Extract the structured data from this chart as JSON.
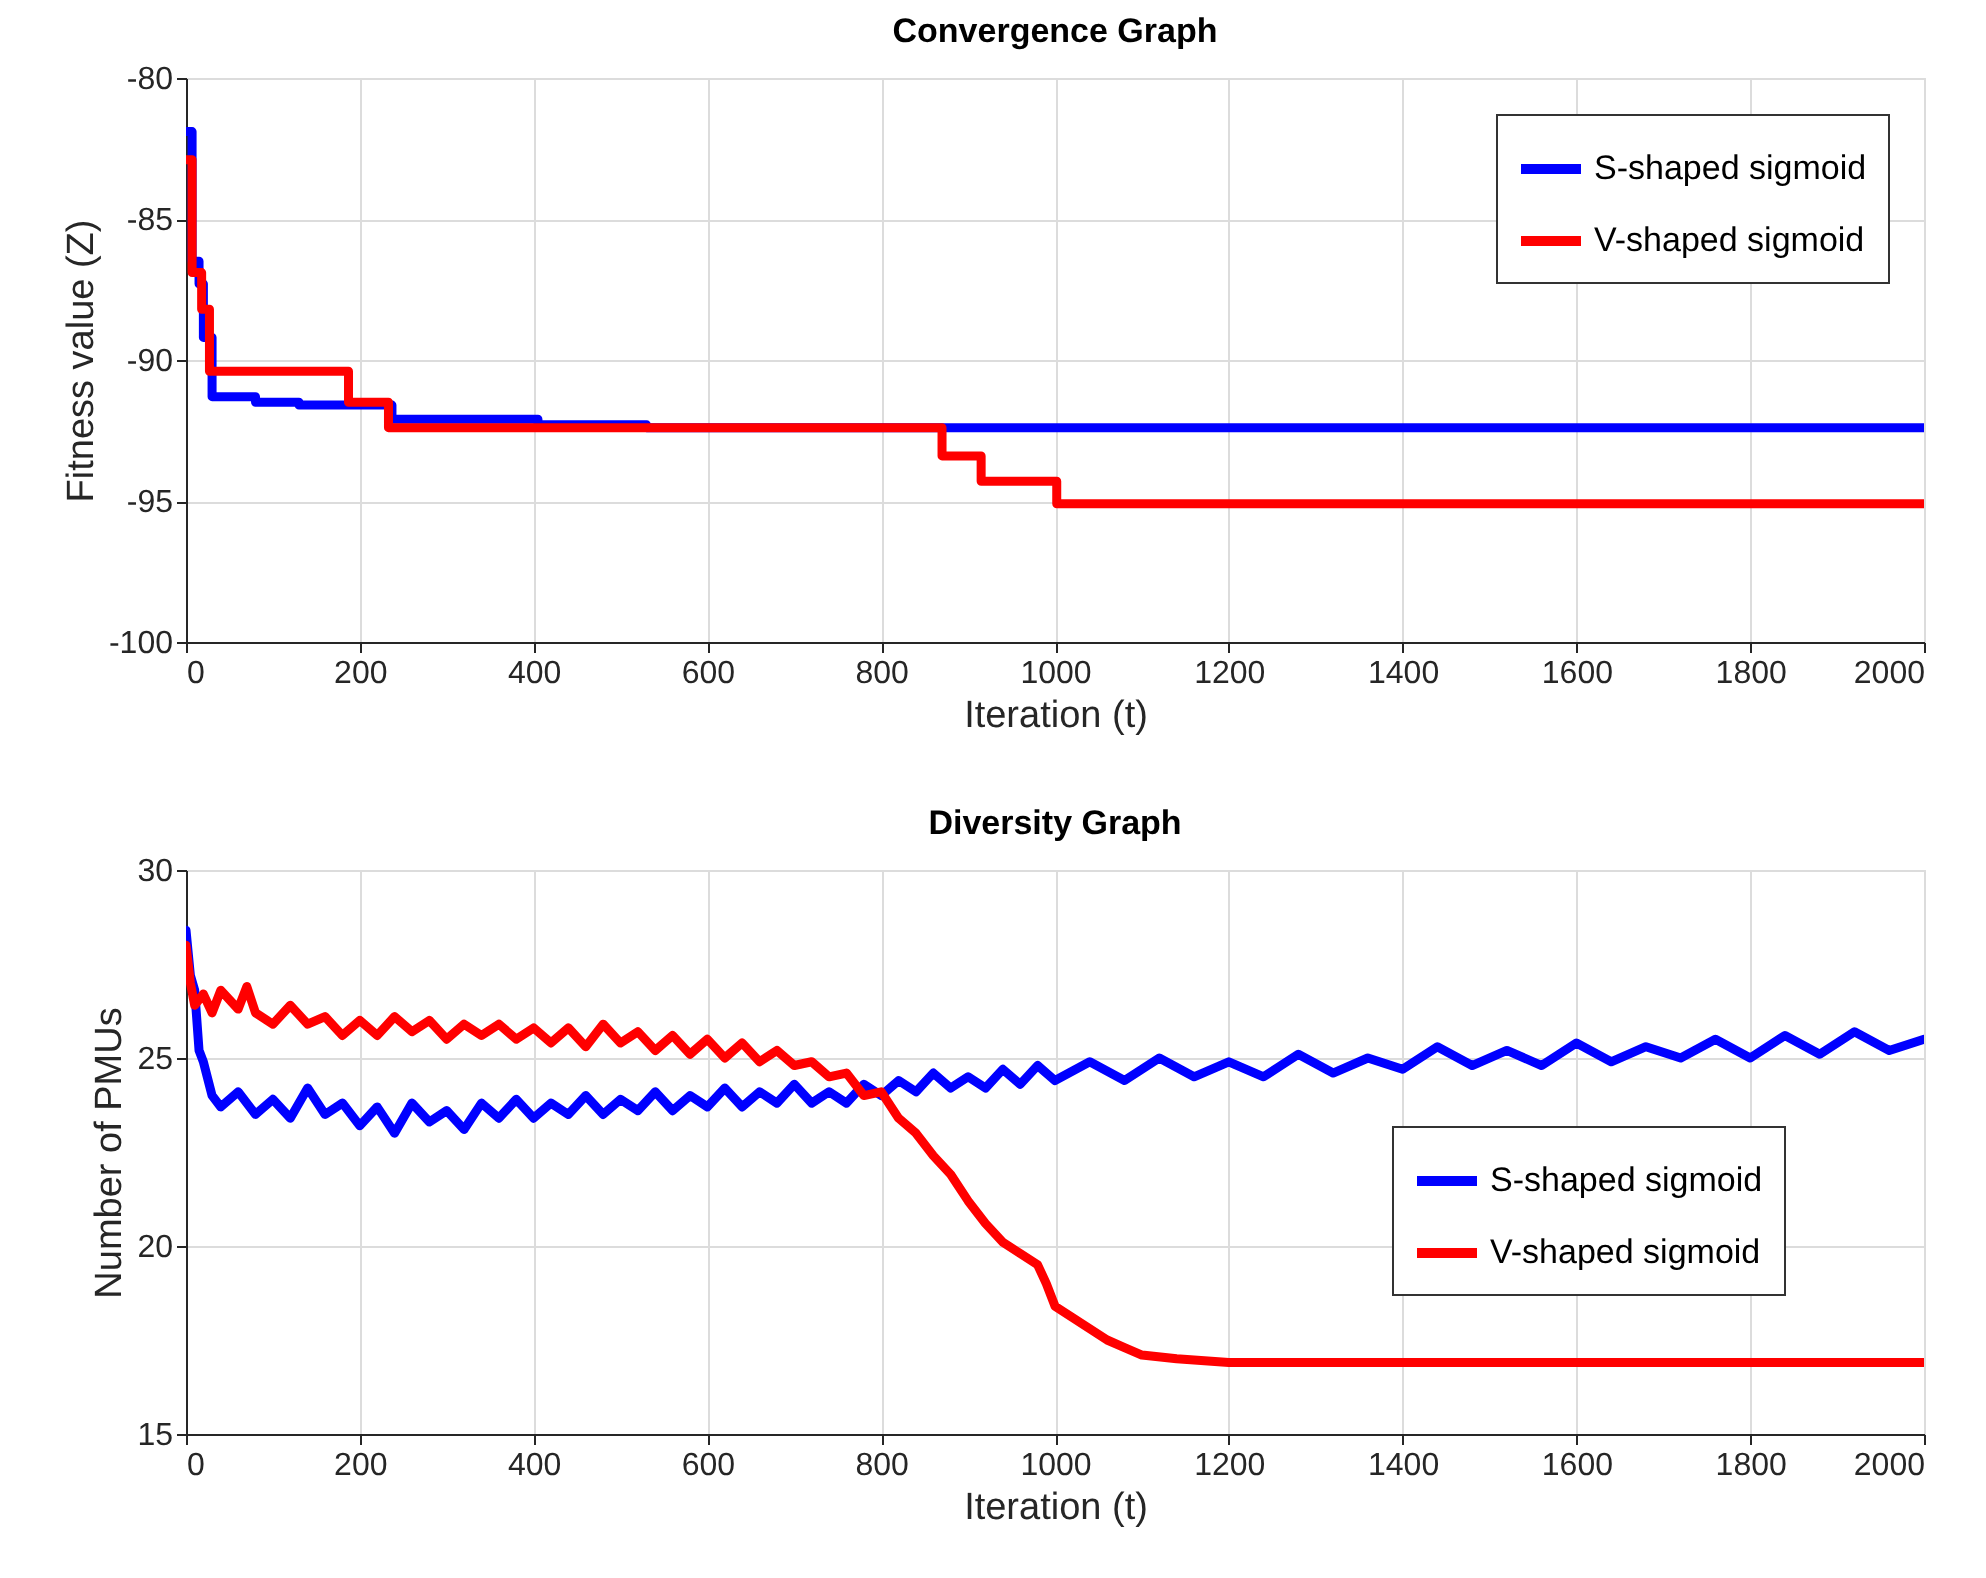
{
  "chart_data": [
    {
      "type": "step",
      "title": "Convergence Graph",
      "xlabel": "Iteration (t)",
      "ylabel": "Fitness value (Z)",
      "xlim": [
        0,
        2000
      ],
      "xticks": [
        0,
        200,
        400,
        600,
        800,
        1000,
        1200,
        1400,
        1600,
        1800,
        2000
      ],
      "ylim": [
        -100,
        -80
      ],
      "yticks": [
        -100,
        -95,
        -90,
        -85,
        -80
      ],
      "grid": true,
      "legend": "top right",
      "series": [
        {
          "name": "S-shaped sigmoid",
          "color": "#0000ff",
          "x": [
            0,
            7,
            15,
            20,
            30,
            80,
            130,
            237,
            405,
            530,
            2000
          ],
          "values": [
            -81.9,
            -86.5,
            -87.3,
            -89.2,
            -91.3,
            -91.5,
            -91.6,
            -92.1,
            -92.3,
            -92.4,
            -92.4
          ]
        },
        {
          "name": "V-shaped sigmoid",
          "color": "#ff0000",
          "x": [
            0,
            7,
            18,
            27,
            187,
            233,
            870,
            915,
            1002,
            2000
          ],
          "values": [
            -82.9,
            -86.9,
            -88.2,
            -90.4,
            -91.5,
            -92.4,
            -93.4,
            -94.3,
            -95.1,
            -95.1
          ]
        }
      ]
    },
    {
      "type": "line",
      "title": "Diversity Graph",
      "xlabel": "Iteration (t)",
      "ylabel": "Number of PMUs",
      "xlim": [
        0,
        2000
      ],
      "xticks": [
        0,
        200,
        400,
        600,
        800,
        1000,
        1200,
        1400,
        1600,
        1800,
        2000
      ],
      "ylim": [
        15,
        30
      ],
      "yticks": [
        15,
        20,
        25,
        30
      ],
      "grid": true,
      "legend": "bottom right",
      "series": [
        {
          "name": "S-shaped sigmoid",
          "color": "#0000ff",
          "x": [
            0,
            5,
            10,
            15,
            20,
            30,
            40,
            60,
            80,
            100,
            120,
            140,
            160,
            180,
            200,
            220,
            240,
            260,
            280,
            300,
            320,
            340,
            360,
            380,
            400,
            420,
            440,
            460,
            480,
            500,
            520,
            540,
            560,
            580,
            600,
            620,
            640,
            660,
            680,
            700,
            720,
            740,
            760,
            780,
            800,
            820,
            840,
            860,
            880,
            900,
            920,
            940,
            960,
            980,
            1000,
            1040,
            1080,
            1120,
            1160,
            1200,
            1240,
            1280,
            1320,
            1360,
            1400,
            1440,
            1480,
            1520,
            1560,
            1600,
            1640,
            1680,
            1720,
            1760,
            1800,
            1840,
            1880,
            1920,
            1960,
            2000
          ],
          "values": [
            28.4,
            27.2,
            26.8,
            25.2,
            24.9,
            24.0,
            23.7,
            24.1,
            23.5,
            23.9,
            23.4,
            24.2,
            23.5,
            23.8,
            23.2,
            23.7,
            23.0,
            23.8,
            23.3,
            23.6,
            23.1,
            23.8,
            23.4,
            23.9,
            23.4,
            23.8,
            23.5,
            24.0,
            23.5,
            23.9,
            23.6,
            24.1,
            23.6,
            24.0,
            23.7,
            24.2,
            23.7,
            24.1,
            23.8,
            24.3,
            23.8,
            24.1,
            23.8,
            24.3,
            24.0,
            24.4,
            24.1,
            24.6,
            24.2,
            24.5,
            24.2,
            24.7,
            24.3,
            24.8,
            24.4,
            24.9,
            24.4,
            25.0,
            24.5,
            24.9,
            24.5,
            25.1,
            24.6,
            25.0,
            24.7,
            25.3,
            24.8,
            25.2,
            24.8,
            25.4,
            24.9,
            25.3,
            25.0,
            25.5,
            25.0,
            25.6,
            25.1,
            25.7,
            25.2,
            25.5
          ]
        },
        {
          "name": "V-shaped sigmoid",
          "color": "#ff0000",
          "x": [
            0,
            5,
            10,
            20,
            30,
            40,
            60,
            70,
            80,
            100,
            120,
            140,
            160,
            180,
            200,
            220,
            240,
            260,
            280,
            300,
            320,
            340,
            360,
            380,
            400,
            420,
            440,
            460,
            480,
            500,
            520,
            540,
            560,
            580,
            600,
            620,
            640,
            660,
            680,
            700,
            720,
            740,
            760,
            780,
            800,
            820,
            840,
            860,
            880,
            900,
            920,
            940,
            960,
            980,
            990,
            1000,
            1020,
            1040,
            1060,
            1080,
            1100,
            1140,
            1200,
            1400,
            1600,
            1800,
            2000
          ],
          "values": [
            28.0,
            27.0,
            26.4,
            26.7,
            26.2,
            26.8,
            26.3,
            26.9,
            26.2,
            25.9,
            26.4,
            25.9,
            26.1,
            25.6,
            26.0,
            25.6,
            26.1,
            25.7,
            26.0,
            25.5,
            25.9,
            25.6,
            25.9,
            25.5,
            25.8,
            25.4,
            25.8,
            25.3,
            25.9,
            25.4,
            25.7,
            25.2,
            25.6,
            25.1,
            25.5,
            25.0,
            25.4,
            24.9,
            25.2,
            24.8,
            24.9,
            24.5,
            24.6,
            24.0,
            24.1,
            23.4,
            23.0,
            22.4,
            21.9,
            21.2,
            20.6,
            20.1,
            19.8,
            19.5,
            19.0,
            18.4,
            18.1,
            17.8,
            17.5,
            17.3,
            17.1,
            17.0,
            16.9,
            16.9,
            16.9,
            16.9,
            16.9
          ]
        }
      ]
    }
  ]
}
